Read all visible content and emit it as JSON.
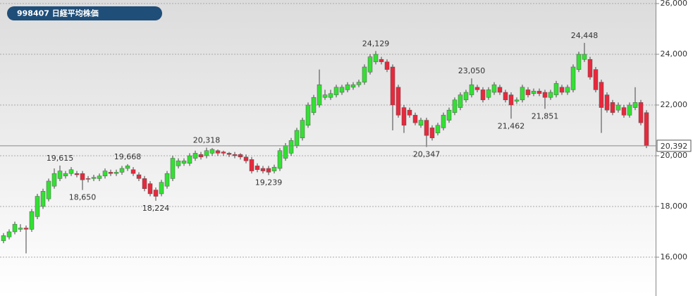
{
  "chart_data": {
    "type": "candlestick",
    "title": "998407 日経平均株価",
    "ylim": [
      14470,
      26140
    ],
    "yticks": [
      {
        "value": 16000,
        "label": "16,000"
      },
      {
        "value": 18000,
        "label": "18,000"
      },
      {
        "value": 20000,
        "label": "20,000"
      },
      {
        "value": 22000,
        "label": "22,000"
      },
      {
        "value": 24000,
        "label": "24,000"
      },
      {
        "value": 26000,
        "label": "26,000"
      }
    ],
    "grid": true,
    "up_color": "#33e033",
    "down_color": "#e8283c",
    "open": [
      16650,
      16800,
      17000,
      17100,
      17150,
      17100,
      17600,
      18000,
      18300,
      18800,
      19100,
      19200,
      19300,
      19300,
      19300,
      19100,
      19100,
      19100,
      19200,
      19350,
      19300,
      19350,
      19500,
      19450,
      19250,
      19100,
      18900,
      18650,
      18500,
      18800,
      19100,
      19600,
      19700,
      19700,
      19900,
      20050,
      20000,
      20100,
      20200,
      20150,
      20100,
      20050,
      20050,
      19950,
      19850,
      19600,
      19500,
      19500,
      19400,
      19500,
      19900,
      20100,
      20400,
      20700,
      21200,
      21700,
      22000,
      22300,
      22300,
      22400,
      22500,
      22600,
      22700,
      22800,
      22900,
      23300,
      23700,
      23800,
      23700,
      23500,
      22700,
      21900,
      21800,
      21600,
      21200,
      21400,
      21100,
      20900,
      21100,
      21400,
      21700,
      21900,
      22200,
      22400,
      22700,
      22600,
      22300,
      22500,
      22700,
      22500,
      22400,
      22150,
      22200,
      22600,
      22450,
      22550,
      22500,
      22300,
      22400,
      22700,
      22500,
      22600,
      23400,
      23800,
      23800,
      23400,
      22900,
      22400,
      22100,
      21800,
      21900,
      21600,
      21900,
      22100,
      21700
    ],
    "high": [
      16950,
      17100,
      17400,
      17300,
      17250,
      17900,
      18500,
      18700,
      19100,
      19500,
      19615,
      19400,
      19550,
      19400,
      19400,
      19200,
      19250,
      19300,
      19500,
      19450,
      19450,
      19600,
      19668,
      19550,
      19350,
      19200,
      19000,
      18750,
      19050,
      19400,
      20000,
      19900,
      19900,
      20100,
      20200,
      20150,
      20318,
      20300,
      20250,
      20200,
      20150,
      20150,
      20100,
      20050,
      19950,
      19700,
      19600,
      19600,
      19650,
      20300,
      20500,
      20700,
      21100,
      21500,
      22100,
      22400,
      23400,
      22600,
      22600,
      22800,
      22800,
      22900,
      22900,
      23000,
      23600,
      24000,
      24129,
      23900,
      23800,
      23600,
      22800,
      22000,
      21900,
      21700,
      21500,
      21500,
      21200,
      21300,
      21700,
      21900,
      22300,
      22500,
      22600,
      23050,
      22800,
      22700,
      22700,
      22900,
      22800,
      22600,
      22500,
      22300,
      22800,
      22700,
      22650,
      22650,
      22600,
      22600,
      22950,
      22800,
      22800,
      23600,
      24100,
      24448,
      23900,
      23500,
      23000,
      22500,
      22200,
      22100,
      22000,
      22100,
      22700,
      22200,
      21800
    ],
    "low": [
      16550,
      16700,
      16900,
      17000,
      16150,
      17000,
      17500,
      17900,
      18200,
      18700,
      19000,
      19100,
      19200,
      19150,
      18650,
      18950,
      19000,
      19000,
      19100,
      19200,
      19200,
      19250,
      19400,
      19200,
      19000,
      18600,
      18400,
      18224,
      18400,
      18700,
      19000,
      19500,
      19600,
      19600,
      19800,
      19850,
      19900,
      20000,
      20000,
      20000,
      19950,
      19900,
      19850,
      19700,
      19300,
      19350,
      19300,
      19239,
      19300,
      19400,
      19800,
      20000,
      20300,
      20600,
      21100,
      21600,
      21900,
      22200,
      22200,
      22300,
      22400,
      22500,
      22600,
      22700,
      22800,
      23200,
      23600,
      23600,
      23300,
      21000,
      21500,
      20900,
      21500,
      21200,
      21100,
      20347,
      20600,
      20800,
      21000,
      21300,
      21600,
      21800,
      22100,
      22300,
      22500,
      22100,
      22200,
      22400,
      22400,
      22100,
      21462,
      22050,
      22100,
      22300,
      22350,
      22350,
      21851,
      22200,
      22300,
      22400,
      22400,
      22500,
      23300,
      23700,
      23000,
      22500,
      20900,
      21700,
      21600,
      21700,
      21500,
      21500,
      21800,
      21200,
      20300
    ],
    "close": [
      16850,
      17000,
      17300,
      17150,
      17100,
      17800,
      18400,
      18600,
      19000,
      19300,
      19400,
      19300,
      19450,
      19250,
      19050,
      19080,
      19150,
      19200,
      19400,
      19300,
      19350,
      19500,
      19600,
      19300,
      19100,
      18700,
      18500,
      18400,
      18950,
      19300,
      19900,
      19800,
      19800,
      20000,
      20100,
      19950,
      20200,
      20250,
      20100,
      20100,
      20050,
      20000,
      19950,
      19800,
      19400,
      19450,
      19400,
      19350,
      19550,
      20200,
      20400,
      20600,
      21000,
      21400,
      22000,
      22300,
      22800,
      22400,
      22450,
      22700,
      22700,
      22800,
      22800,
      22900,
      23500,
      23900,
      24000,
      23700,
      23400,
      22000,
      21600,
      21200,
      21600,
      21300,
      21400,
      20800,
      20700,
      21200,
      21600,
      21800,
      22200,
      22400,
      22500,
      22800,
      22600,
      22200,
      22600,
      22800,
      22500,
      22200,
      22000,
      22200,
      22700,
      22400,
      22550,
      22450,
      22300,
      22500,
      22850,
      22500,
      22700,
      23500,
      24000,
      24000,
      23100,
      22600,
      21900,
      21800,
      21700,
      22000,
      21600,
      22000,
      22100,
      21300,
      20392
    ],
    "annotations": [
      {
        "value": 19615,
        "label": "19,615"
      },
      {
        "value": 18650,
        "label": "18,650"
      },
      {
        "value": 19668,
        "label": "19,668"
      },
      {
        "value": 18224,
        "label": "18,224"
      },
      {
        "value": 20318,
        "label": "20,318"
      },
      {
        "value": 19239,
        "label": "19,239"
      },
      {
        "value": 24129,
        "label": "24,129"
      },
      {
        "value": 20347,
        "label": "20,347"
      },
      {
        "value": 23050,
        "label": "23,050"
      },
      {
        "value": 21462,
        "label": "21,462"
      },
      {
        "value": 21851,
        "label": "21,851"
      },
      {
        "value": 24448,
        "label": "24,448"
      }
    ],
    "current_price": {
      "value": 20392,
      "label": "20,392"
    }
  }
}
